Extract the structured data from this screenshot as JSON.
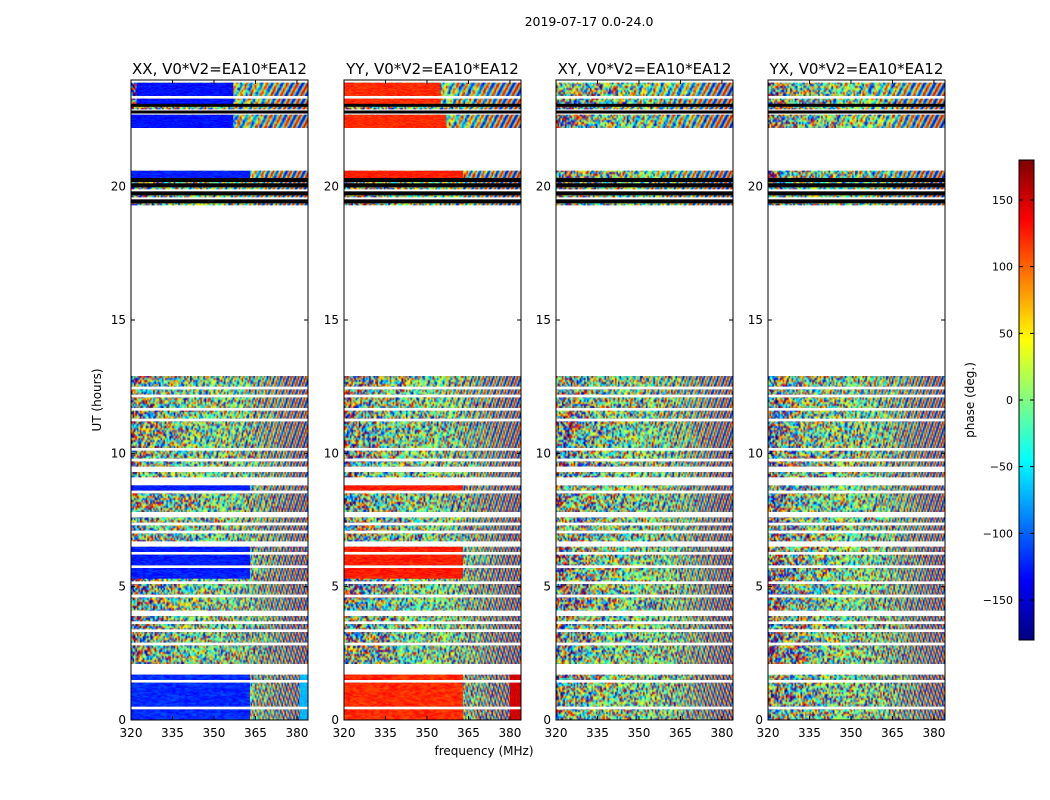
{
  "figure": {
    "suptitle": "2019-07-17 0.0-24.0",
    "xlabel": "frequency (MHz)",
    "ylabel": "UT (hours)"
  },
  "chart_data": {
    "type": "heatmap",
    "title": "2019-07-17 0.0-24.0",
    "xlabel": "frequency (MHz)",
    "ylabel": "UT (hours)",
    "xlim": [
      320,
      384
    ],
    "ylim": [
      0,
      24
    ],
    "xticks": [
      320,
      335,
      350,
      365,
      380
    ],
    "yticks": [
      0,
      5,
      10,
      15,
      20
    ],
    "colorbar": {
      "label": "phase (deg.)",
      "range": [
        -180,
        180
      ],
      "ticks": [
        -150,
        -100,
        -50,
        0,
        50,
        100,
        150
      ],
      "tick_labels": [
        "−150",
        "−100",
        "−50",
        "0",
        "50",
        "100",
        "150"
      ],
      "colormap": "jet"
    },
    "colormap_stops": [
      "#00007f",
      "#0000ff",
      "#0080ff",
      "#00ffff",
      "#80ff80",
      "#ffff00",
      "#ff8000",
      "#ff0000",
      "#7f0000"
    ],
    "data_time_ranges_hours": [
      [
        0.0,
        0.4
      ],
      [
        0.5,
        1.4
      ],
      [
        1.5,
        1.7
      ],
      [
        2.1,
        2.8
      ],
      [
        2.9,
        3.3
      ],
      [
        3.4,
        3.6
      ],
      [
        3.7,
        3.9
      ],
      [
        4.1,
        4.6
      ],
      [
        4.7,
        5.1
      ],
      [
        5.2,
        5.7
      ],
      [
        5.8,
        6.2
      ],
      [
        6.3,
        6.5
      ],
      [
        6.7,
        7.0
      ],
      [
        7.1,
        7.3
      ],
      [
        7.4,
        7.6
      ],
      [
        7.8,
        8.5
      ],
      [
        8.6,
        8.8
      ],
      [
        9.1,
        9.3
      ],
      [
        9.5,
        9.7
      ],
      [
        9.8,
        10.1
      ],
      [
        10.2,
        11.2
      ],
      [
        11.3,
        11.6
      ],
      [
        11.7,
        12.1
      ],
      [
        12.2,
        12.4
      ],
      [
        12.5,
        12.9
      ],
      [
        19.3,
        19.4
      ],
      [
        19.6,
        19.7
      ],
      [
        19.9,
        20.0
      ],
      [
        20.1,
        20.2
      ],
      [
        20.3,
        20.6
      ],
      [
        22.2,
        22.7
      ],
      [
        22.9,
        23.0
      ],
      [
        23.1,
        23.3
      ],
      [
        23.4,
        23.9
      ]
    ],
    "panels": [
      {
        "title": "XX, V0*V2=EA10*EA12",
        "pattern_bands": [
          {
            "t0": 0,
            "t1": 2,
            "f0": 320,
            "f1": 363,
            "phase": -120
          },
          {
            "t0": 0,
            "t1": 2,
            "f0": 381,
            "f1": 384,
            "phase": -70
          },
          {
            "t0": 5.3,
            "t1": 6.5,
            "f0": 320,
            "f1": 363,
            "phase": -125
          },
          {
            "t0": 8.6,
            "t1": 8.85,
            "f0": 320,
            "f1": 363,
            "phase": -125
          },
          {
            "t0": 20.3,
            "t1": 20.6,
            "f0": 320,
            "f1": 363,
            "phase": -125
          },
          {
            "t0": 22.2,
            "t1": 22.7,
            "f0": 320,
            "f1": 357,
            "phase": -130
          },
          {
            "t0": 23.1,
            "t1": 23.9,
            "f0": 322,
            "f1": 357,
            "phase": -130
          }
        ]
      },
      {
        "title": "YY, V0*V2=EA10*EA12",
        "pattern_bands": [
          {
            "t0": 0,
            "t1": 2,
            "f0": 320,
            "f1": 363,
            "phase": 120
          },
          {
            "t0": 0,
            "t1": 2,
            "f0": 380,
            "f1": 384,
            "phase": 150
          },
          {
            "t0": 5.3,
            "t1": 6.5,
            "f0": 320,
            "f1": 363,
            "phase": 125
          },
          {
            "t0": 8.6,
            "t1": 8.85,
            "f0": 320,
            "f1": 363,
            "phase": 125
          },
          {
            "t0": 20.3,
            "t1": 20.6,
            "f0": 320,
            "f1": 363,
            "phase": 125
          },
          {
            "t0": 22.2,
            "t1": 22.7,
            "f0": 320,
            "f1": 357,
            "phase": 120
          },
          {
            "t0": 23.1,
            "t1": 23.9,
            "f0": 320,
            "f1": 355,
            "phase": 120
          }
        ]
      },
      {
        "title": "XY, V0*V2=EA10*EA12",
        "pattern_bands": []
      },
      {
        "title": "YX, V0*V2=EA10*EA12",
        "pattern_bands": []
      }
    ]
  }
}
